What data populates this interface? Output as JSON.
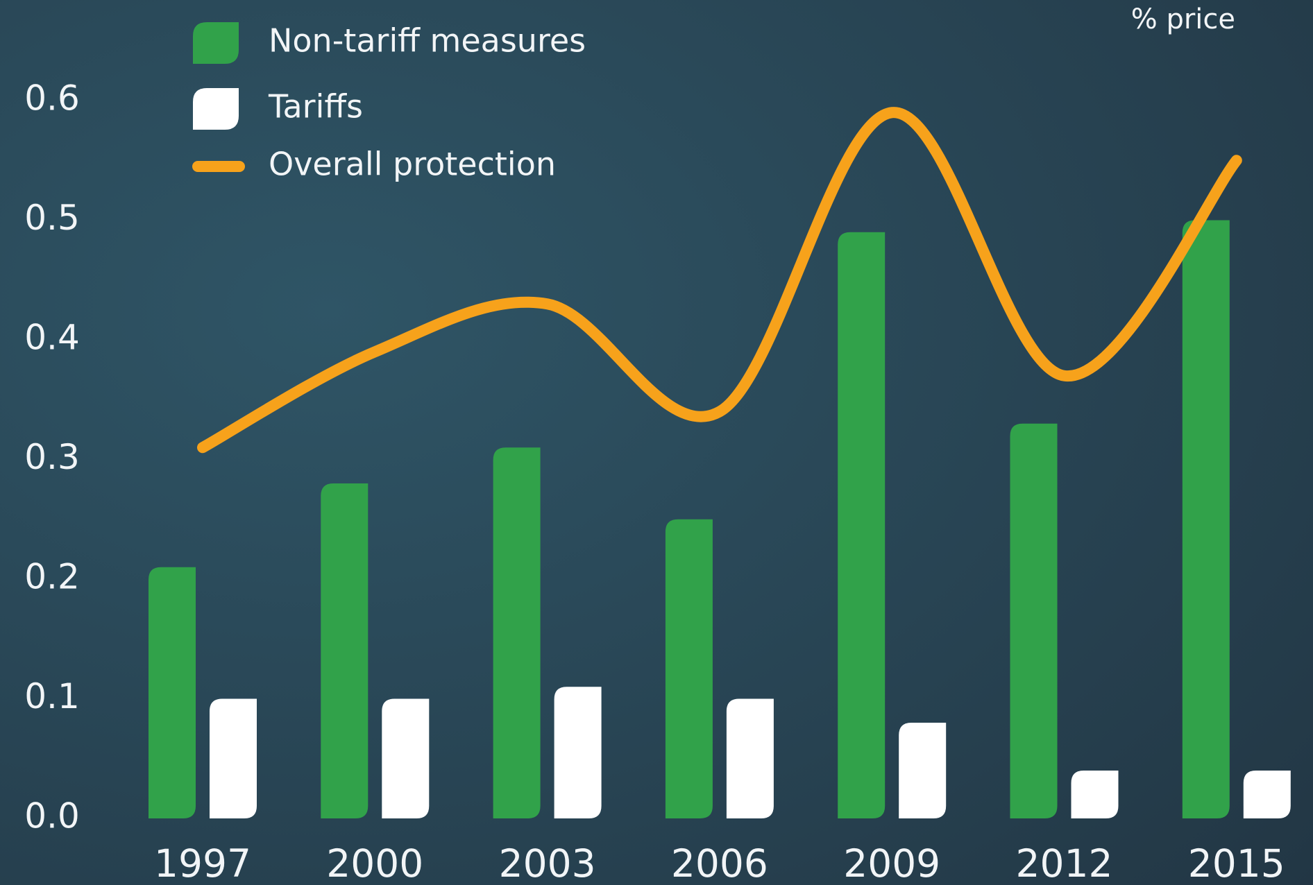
{
  "chart_data": {
    "type": "bar",
    "unit_label": "% price",
    "categories": [
      "1997",
      "2000",
      "2003",
      "2006",
      "2009",
      "2012",
      "2015"
    ],
    "series": [
      {
        "name": "Non-tariff measures",
        "color": "#31a24a",
        "values": [
          0.21,
          0.28,
          0.31,
          0.25,
          0.49,
          0.33,
          0.5
        ]
      },
      {
        "name": "Tariffs",
        "color": "#ffffff",
        "values": [
          0.1,
          0.1,
          0.11,
          0.1,
          0.08,
          0.04,
          0.04
        ]
      },
      {
        "name": "Overall protection",
        "color": "#f7a21b",
        "type": "line",
        "values": [
          0.31,
          0.39,
          0.43,
          0.34,
          0.59,
          0.37,
          0.55
        ]
      }
    ],
    "ylim": [
      0,
      0.6
    ],
    "yticks": [
      {
        "value": 0,
        "label": "0.0"
      },
      0.1,
      0.2,
      0.3,
      0.4,
      0.5,
      0.6
    ],
    "grid": false
  }
}
